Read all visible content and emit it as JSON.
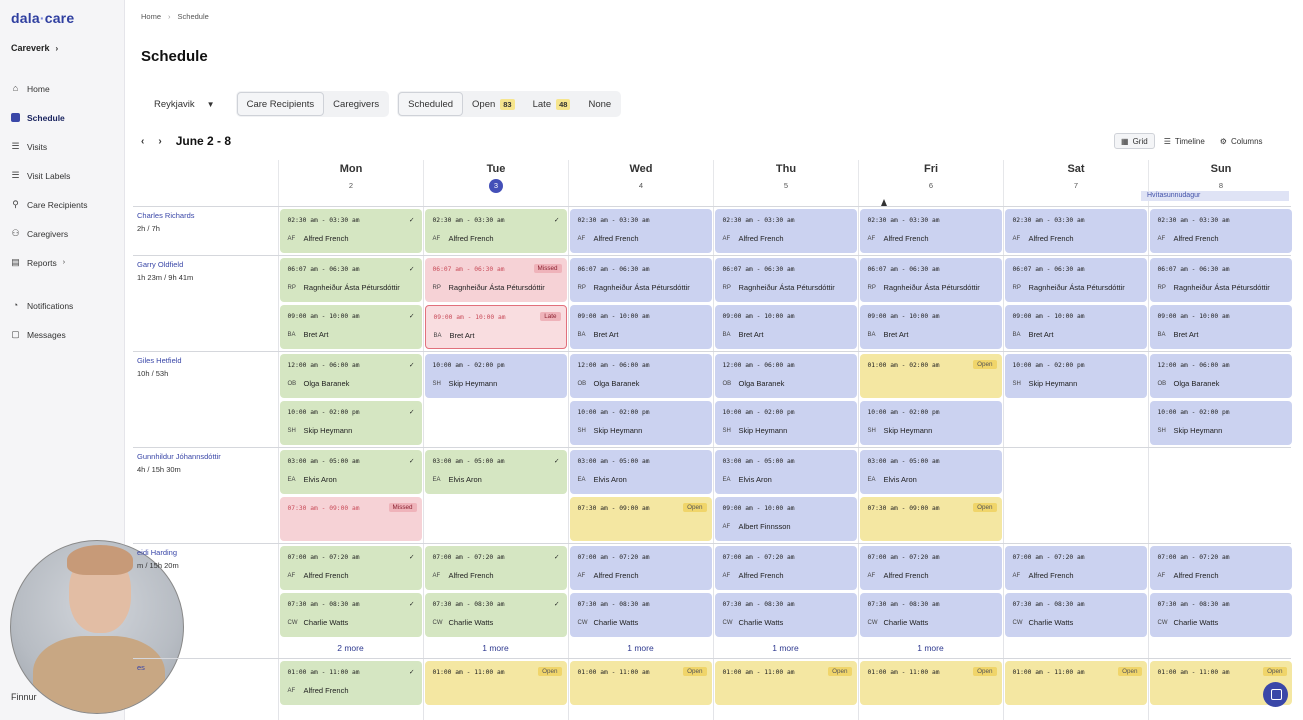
{
  "brand": {
    "logo_a": "dala",
    "logo_dot": "·",
    "logo_b": "care"
  },
  "org": {
    "name": "Careverk",
    "chevron": "›"
  },
  "nav": [
    {
      "label": "Home",
      "icon": "home-icon",
      "glyph": "⌂"
    },
    {
      "label": "Schedule",
      "icon": "calendar-icon",
      "glyph": ""
    },
    {
      "label": "Visits",
      "icon": "list-icon",
      "glyph": "☰"
    },
    {
      "label": "Visit Labels",
      "icon": "tag-icon",
      "glyph": "☰"
    },
    {
      "label": "Care Recipients",
      "icon": "person-icon",
      "glyph": "⚲"
    },
    {
      "label": "Caregivers",
      "icon": "people-icon",
      "glyph": "⚇"
    },
    {
      "label": "Reports",
      "icon": "document-icon",
      "glyph": "▤",
      "sub": "›"
    },
    {
      "label": "Notifications",
      "icon": "bell-icon",
      "glyph": "◔"
    },
    {
      "label": "Messages",
      "icon": "chat-icon",
      "glyph": "▢"
    }
  ],
  "user": {
    "name": "Finnur"
  },
  "breadcrumb": {
    "home": "Home",
    "sep": "›",
    "current": "Schedule"
  },
  "page": {
    "title": "Schedule"
  },
  "filters": {
    "location": "Reykjavik",
    "location_arrow": "▼",
    "care_recipients": "Care Recipients",
    "caregivers": "Caregivers",
    "scheduled": "Scheduled",
    "open": "Open",
    "open_count": "83",
    "late": "Late",
    "late_count": "48",
    "none": "None"
  },
  "week": {
    "prev": "‹",
    "next": "›",
    "range": "June 2 - 8"
  },
  "views": {
    "grid": "Grid",
    "timeline": "Timeline",
    "columns": "Columns"
  },
  "days": [
    {
      "name": "Mon",
      "date": "2"
    },
    {
      "name": "Tue",
      "date": "3",
      "today": true
    },
    {
      "name": "Wed",
      "date": "4"
    },
    {
      "name": "Thu",
      "date": "5"
    },
    {
      "name": "Fri",
      "date": "6"
    },
    {
      "name": "Sat",
      "date": "7"
    },
    {
      "name": "Sun",
      "date": "8"
    }
  ],
  "holiday": "Hvítasunnudagur",
  "recipients": [
    {
      "name": "Charles Richards",
      "hours": "2h / 7h"
    },
    {
      "name": "Garry Oldfield",
      "hours": "1h 23m  / 9h 41m"
    },
    {
      "name": "Giles Hetfield",
      "hours": "10h / 53h"
    },
    {
      "name": "Gunnhildur Jóhannsdóttir",
      "hours": "4h / 15h 30m"
    },
    {
      "name": "eidi Harding",
      "hours": "m  / 15h 20m"
    },
    {
      "name": "es",
      "hours": ""
    }
  ],
  "visits": [
    {
      "row": 0,
      "day": 0,
      "slot": 0,
      "color": "g",
      "time": "02:30 am - 03:30 am",
      "ini": "AF",
      "name": "Alfred French",
      "status": "✓"
    },
    {
      "row": 0,
      "day": 1,
      "slot": 0,
      "color": "g",
      "time": "02:30 am - 03:30 am",
      "ini": "AF",
      "name": "Alfred French",
      "status": "✓"
    },
    {
      "row": 0,
      "day": 2,
      "slot": 0,
      "color": "b",
      "time": "02:30 am - 03:30 am",
      "ini": "AF",
      "name": "Alfred French"
    },
    {
      "row": 0,
      "day": 3,
      "slot": 0,
      "color": "b",
      "time": "02:30 am - 03:30 am",
      "ini": "AF",
      "name": "Alfred French"
    },
    {
      "row": 0,
      "day": 4,
      "slot": 0,
      "color": "b",
      "time": "02:30 am - 03:30 am",
      "ini": "AF",
      "name": "Alfred French"
    },
    {
      "row": 0,
      "day": 5,
      "slot": 0,
      "color": "b",
      "time": "02:30 am - 03:30 am",
      "ini": "AF",
      "name": "Alfred French"
    },
    {
      "row": 0,
      "day": 6,
      "slot": 0,
      "color": "b",
      "time": "02:30 am - 03:30 am",
      "ini": "AF",
      "name": "Alfred French"
    },
    {
      "row": 1,
      "day": 0,
      "slot": 0,
      "color": "g",
      "time": "06:07 am - 06:30 am",
      "ini": "RP",
      "name": "Ragnheiður Ásta Pétursdóttir",
      "status": "✓"
    },
    {
      "row": 1,
      "day": 1,
      "slot": 0,
      "color": "r",
      "time": "06:07 am - 06:30 am",
      "ini": "RP",
      "name": "Ragnheiður Ásta Pétursdóttir",
      "tag": "Missed",
      "tagc": "missed"
    },
    {
      "row": 1,
      "day": 2,
      "slot": 0,
      "color": "b",
      "time": "06:07 am - 06:30 am",
      "ini": "RP",
      "name": "Ragnheiður Ásta Pétursdóttir"
    },
    {
      "row": 1,
      "day": 3,
      "slot": 0,
      "color": "b",
      "time": "06:07 am - 06:30 am",
      "ini": "RP",
      "name": "Ragnheiður Ásta Pétursdóttir"
    },
    {
      "row": 1,
      "day": 4,
      "slot": 0,
      "color": "b",
      "time": "06:07 am - 06:30 am",
      "ini": "RP",
      "name": "Ragnheiður Ásta Pétursdóttir"
    },
    {
      "row": 1,
      "day": 5,
      "slot": 0,
      "color": "b",
      "time": "06:07 am - 06:30 am",
      "ini": "RP",
      "name": "Ragnheiður Ásta Pétursdóttir"
    },
    {
      "row": 1,
      "day": 6,
      "slot": 0,
      "color": "b",
      "time": "06:07 am - 06:30 am",
      "ini": "RP",
      "name": "Ragnheiður Ásta Pétursdóttir"
    },
    {
      "row": 1,
      "day": 0,
      "slot": 1,
      "color": "g",
      "time": "09:00 am - 10:00 am",
      "ini": "BA",
      "name": "Bret Art",
      "status": "✓"
    },
    {
      "row": 1,
      "day": 1,
      "slot": 1,
      "color": "rb",
      "time": "09:00 am - 10:00 am",
      "ini": "BA",
      "name": "Bret Art",
      "tag": "Late",
      "tagc": "late"
    },
    {
      "row": 1,
      "day": 2,
      "slot": 1,
      "color": "b",
      "time": "09:00 am - 10:00 am",
      "ini": "BA",
      "name": "Bret Art"
    },
    {
      "row": 1,
      "day": 3,
      "slot": 1,
      "color": "b",
      "time": "09:00 am - 10:00 am",
      "ini": "BA",
      "name": "Bret Art"
    },
    {
      "row": 1,
      "day": 4,
      "slot": 1,
      "color": "b",
      "time": "09:00 am - 10:00 am",
      "ini": "BA",
      "name": "Bret Art"
    },
    {
      "row": 1,
      "day": 5,
      "slot": 1,
      "color": "b",
      "time": "09:00 am - 10:00 am",
      "ini": "BA",
      "name": "Bret Art"
    },
    {
      "row": 1,
      "day": 6,
      "slot": 1,
      "color": "b",
      "time": "09:00 am - 10:00 am",
      "ini": "BA",
      "name": "Bret Art"
    },
    {
      "row": 2,
      "day": 0,
      "slot": 0,
      "color": "g",
      "time": "12:00 am - 06:00 am",
      "ini": "OB",
      "name": "Olga Baranek",
      "status": "✓"
    },
    {
      "row": 2,
      "day": 1,
      "slot": 0,
      "color": "b",
      "time": "10:00 am - 02:00 pm",
      "ini": "SH",
      "name": "Skip Heymann"
    },
    {
      "row": 2,
      "day": 2,
      "slot": 0,
      "color": "b",
      "time": "12:00 am - 06:00 am",
      "ini": "OB",
      "name": "Olga Baranek"
    },
    {
      "row": 2,
      "day": 3,
      "slot": 0,
      "color": "b",
      "time": "12:00 am - 06:00 am",
      "ini": "OB",
      "name": "Olga Baranek"
    },
    {
      "row": 2,
      "day": 4,
      "slot": 0,
      "color": "y",
      "time": "01:00 am - 02:00 am",
      "ini": "",
      "name": "",
      "tag": "Open",
      "tagc": "open"
    },
    {
      "row": 2,
      "day": 5,
      "slot": 0,
      "color": "b",
      "time": "10:00 am - 02:00 pm",
      "ini": "SH",
      "name": "Skip Heymann"
    },
    {
      "row": 2,
      "day": 6,
      "slot": 0,
      "color": "b",
      "time": "12:00 am - 06:00 am",
      "ini": "OB",
      "name": "Olga Baranek"
    },
    {
      "row": 2,
      "day": 0,
      "slot": 1,
      "color": "g",
      "time": "10:00 am - 02:00 pm",
      "ini": "SH",
      "name": "Skip Heymann",
      "status": "✓"
    },
    {
      "row": 2,
      "day": 2,
      "slot": 1,
      "color": "b",
      "time": "10:00 am - 02:00 pm",
      "ini": "SH",
      "name": "Skip Heymann"
    },
    {
      "row": 2,
      "day": 3,
      "slot": 1,
      "color": "b",
      "time": "10:00 am - 02:00 pm",
      "ini": "SH",
      "name": "Skip Heymann"
    },
    {
      "row": 2,
      "day": 4,
      "slot": 1,
      "color": "b",
      "time": "10:00 am - 02:00 pm",
      "ini": "SH",
      "name": "Skip Heymann"
    },
    {
      "row": 2,
      "day": 6,
      "slot": 1,
      "color": "b",
      "time": "10:00 am - 02:00 pm",
      "ini": "SH",
      "name": "Skip Heymann"
    },
    {
      "row": 3,
      "day": 0,
      "slot": 0,
      "color": "g",
      "time": "03:00 am - 05:00 am",
      "ini": "EA",
      "name": "Elvis Aron",
      "status": "✓"
    },
    {
      "row": 3,
      "day": 1,
      "slot": 0,
      "color": "g",
      "time": "03:00 am - 05:00 am",
      "ini": "EA",
      "name": "Elvis Aron",
      "status": "✓"
    },
    {
      "row": 3,
      "day": 2,
      "slot": 0,
      "color": "b",
      "time": "03:00 am - 05:00 am",
      "ini": "EA",
      "name": "Elvis Aron"
    },
    {
      "row": 3,
      "day": 3,
      "slot": 0,
      "color": "b",
      "time": "03:00 am - 05:00 am",
      "ini": "EA",
      "name": "Elvis Aron"
    },
    {
      "row": 3,
      "day": 4,
      "slot": 0,
      "color": "b",
      "time": "03:00 am - 05:00 am",
      "ini": "EA",
      "name": "Elvis Aron"
    },
    {
      "row": 3,
      "day": 0,
      "slot": 1,
      "color": "r",
      "time": "07:30 am - 09:00 am",
      "ini": "",
      "name": "",
      "tag": "Missed",
      "tagc": "missed"
    },
    {
      "row": 3,
      "day": 2,
      "slot": 1,
      "color": "y",
      "time": "07:30 am - 09:00 am",
      "ini": "",
      "name": "",
      "tag": "Open",
      "tagc": "open"
    },
    {
      "row": 3,
      "day": 3,
      "slot": 1,
      "color": "b",
      "time": "09:00 am - 10:00 am",
      "ini": "AF",
      "name": "Albert Finnsson"
    },
    {
      "row": 3,
      "day": 4,
      "slot": 1,
      "color": "y",
      "time": "07:30 am - 09:00 am",
      "ini": "",
      "name": "",
      "tag": "Open",
      "tagc": "open"
    },
    {
      "row": 4,
      "day": 0,
      "slot": 0,
      "color": "g",
      "time": "07:00 am - 07:20 am",
      "ini": "AF",
      "name": "Alfred French",
      "status": "✓"
    },
    {
      "row": 4,
      "day": 1,
      "slot": 0,
      "color": "g",
      "time": "07:00 am - 07:20 am",
      "ini": "AF",
      "name": "Alfred French",
      "status": "✓"
    },
    {
      "row": 4,
      "day": 2,
      "slot": 0,
      "color": "b",
      "time": "07:00 am - 07:20 am",
      "ini": "AF",
      "name": "Alfred French"
    },
    {
      "row": 4,
      "day": 3,
      "slot": 0,
      "color": "b",
      "time": "07:00 am - 07:20 am",
      "ini": "AF",
      "name": "Alfred French"
    },
    {
      "row": 4,
      "day": 4,
      "slot": 0,
      "color": "b",
      "time": "07:00 am - 07:20 am",
      "ini": "AF",
      "name": "Alfred French"
    },
    {
      "row": 4,
      "day": 5,
      "slot": 0,
      "color": "b",
      "time": "07:00 am - 07:20 am",
      "ini": "AF",
      "name": "Alfred French"
    },
    {
      "row": 4,
      "day": 6,
      "slot": 0,
      "color": "b",
      "time": "07:00 am - 07:20 am",
      "ini": "AF",
      "name": "Alfred French"
    },
    {
      "row": 4,
      "day": 0,
      "slot": 1,
      "color": "g",
      "time": "07:30 am - 08:30 am",
      "ini": "CW",
      "name": "Charlie Watts",
      "status": "✓"
    },
    {
      "row": 4,
      "day": 1,
      "slot": 1,
      "color": "g",
      "time": "07:30 am - 08:30 am",
      "ini": "CW",
      "name": "Charlie Watts",
      "status": "✓"
    },
    {
      "row": 4,
      "day": 2,
      "slot": 1,
      "color": "b",
      "time": "07:30 am - 08:30 am",
      "ini": "CW",
      "name": "Charlie Watts"
    },
    {
      "row": 4,
      "day": 3,
      "slot": 1,
      "color": "b",
      "time": "07:30 am - 08:30 am",
      "ini": "CW",
      "name": "Charlie Watts"
    },
    {
      "row": 4,
      "day": 4,
      "slot": 1,
      "color": "b",
      "time": "07:30 am - 08:30 am",
      "ini": "CW",
      "name": "Charlie Watts"
    },
    {
      "row": 4,
      "day": 5,
      "slot": 1,
      "color": "b",
      "time": "07:30 am - 08:30 am",
      "ini": "CW",
      "name": "Charlie Watts"
    },
    {
      "row": 4,
      "day": 6,
      "slot": 1,
      "color": "b",
      "time": "07:30 am - 08:30 am",
      "ini": "CW",
      "name": "Charlie Watts"
    },
    {
      "row": 5,
      "day": 0,
      "slot": 0,
      "color": "g",
      "time": "01:00 am - 11:00 am",
      "ini": "AF",
      "name": "Alfred French",
      "status": "✓"
    },
    {
      "row": 5,
      "day": 1,
      "slot": 0,
      "color": "y",
      "time": "01:00 am - 11:00 am",
      "ini": "",
      "name": "",
      "tag": "Open",
      "tagc": "open"
    },
    {
      "row": 5,
      "day": 2,
      "slot": 0,
      "color": "y",
      "time": "01:00 am - 11:00 am",
      "ini": "",
      "name": "",
      "tag": "Open",
      "tagc": "open"
    },
    {
      "row": 5,
      "day": 3,
      "slot": 0,
      "color": "y",
      "time": "01:00 am - 11:00 am",
      "ini": "",
      "name": "",
      "tag": "Open",
      "tagc": "open"
    },
    {
      "row": 5,
      "day": 4,
      "slot": 0,
      "color": "y",
      "time": "01:00 am - 11:00 am",
      "ini": "",
      "name": "",
      "tag": "Open",
      "tagc": "open"
    },
    {
      "row": 5,
      "day": 5,
      "slot": 0,
      "color": "y",
      "time": "01:00 am - 11:00 am",
      "ini": "",
      "name": "",
      "tag": "Open",
      "tagc": "open"
    },
    {
      "row": 5,
      "day": 6,
      "slot": 0,
      "color": "y",
      "time": "01:00 am - 11:00 am",
      "ini": "",
      "name": "",
      "tag": "Open",
      "tagc": "open"
    }
  ],
  "more": [
    {
      "day": 0,
      "label": "2 more"
    },
    {
      "day": 1,
      "label": "1 more"
    },
    {
      "day": 2,
      "label": "1 more"
    },
    {
      "day": 3,
      "label": "1 more"
    },
    {
      "day": 4,
      "label": "1 more"
    }
  ]
}
